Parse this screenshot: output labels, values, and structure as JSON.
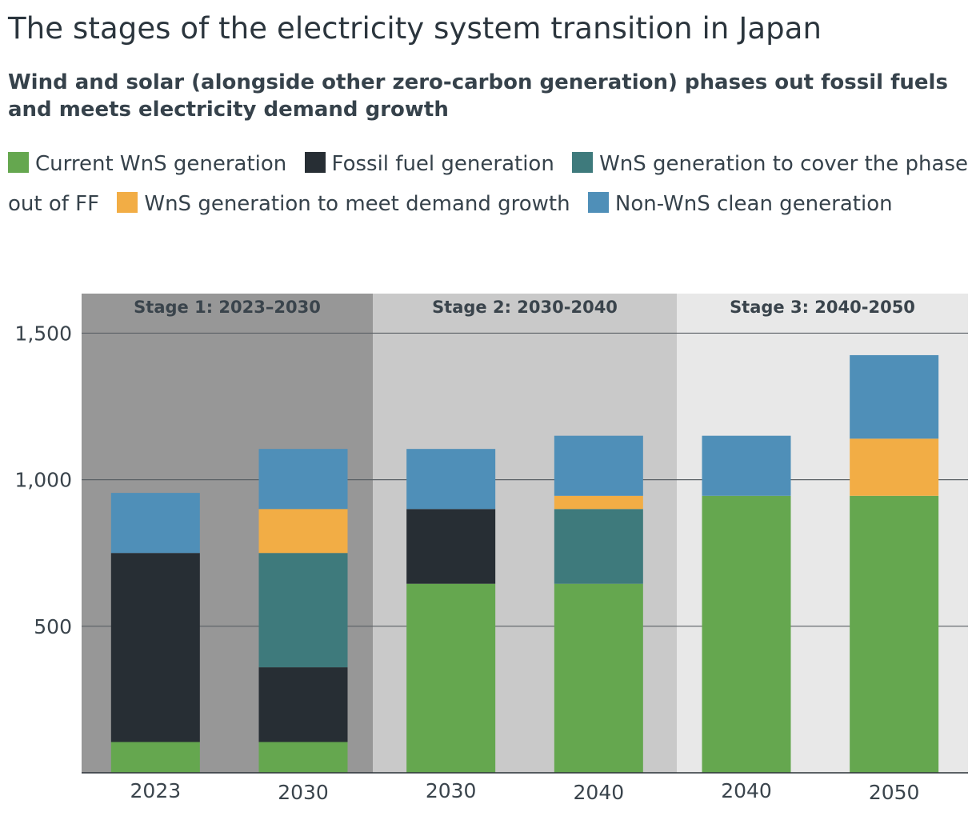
{
  "title": "The stages of the electricity system transition in Japan",
  "subtitle": "Wind and solar (alongside other zero-carbon generation) phases out fossil fuels and meets electricity demand growth",
  "chart_data": {
    "type": "bar",
    "stacked": true,
    "categories": [
      "2023",
      "2030",
      "2030",
      "2040",
      "2040",
      "2050"
    ],
    "stages": [
      {
        "label": "Stage 1: 2023–2030",
        "categories": [
          0,
          1
        ],
        "color": "#979797"
      },
      {
        "label": "Stage 2: 2030-2040",
        "categories": [
          2,
          3
        ],
        "color": "#c9c9c9"
      },
      {
        "label": "Stage 3: 2040-2050",
        "categories": [
          4,
          5
        ],
        "color": "#e8e8e8"
      }
    ],
    "series": [
      {
        "name": "Current WnS generation",
        "color": "#65a74f",
        "values": [
          105,
          105,
          645,
          645,
          945,
          945
        ]
      },
      {
        "name": "Fossil fuel generation",
        "color": "#272e34",
        "values": [
          645,
          255,
          255,
          0,
          0,
          0
        ]
      },
      {
        "name": "WnS generation to cover the phase out of FF",
        "color": "#3e7a7c",
        "values": [
          0,
          390,
          0,
          255,
          0,
          0
        ]
      },
      {
        "name": "WnS generation to meet demand growth",
        "color": "#f2ad45",
        "values": [
          0,
          150,
          0,
          45,
          0,
          195
        ]
      },
      {
        "name": "Non-WnS clean generation",
        "color": "#4f8fb8",
        "values": [
          205,
          205,
          205,
          205,
          205,
          285
        ]
      }
    ],
    "yticks": [
      500,
      1000,
      1500
    ],
    "ytick_labels": [
      "500",
      "1,000",
      "1,500"
    ],
    "ylim": [
      0,
      1635
    ],
    "xlabel": "",
    "ylabel": "",
    "grid": true
  }
}
